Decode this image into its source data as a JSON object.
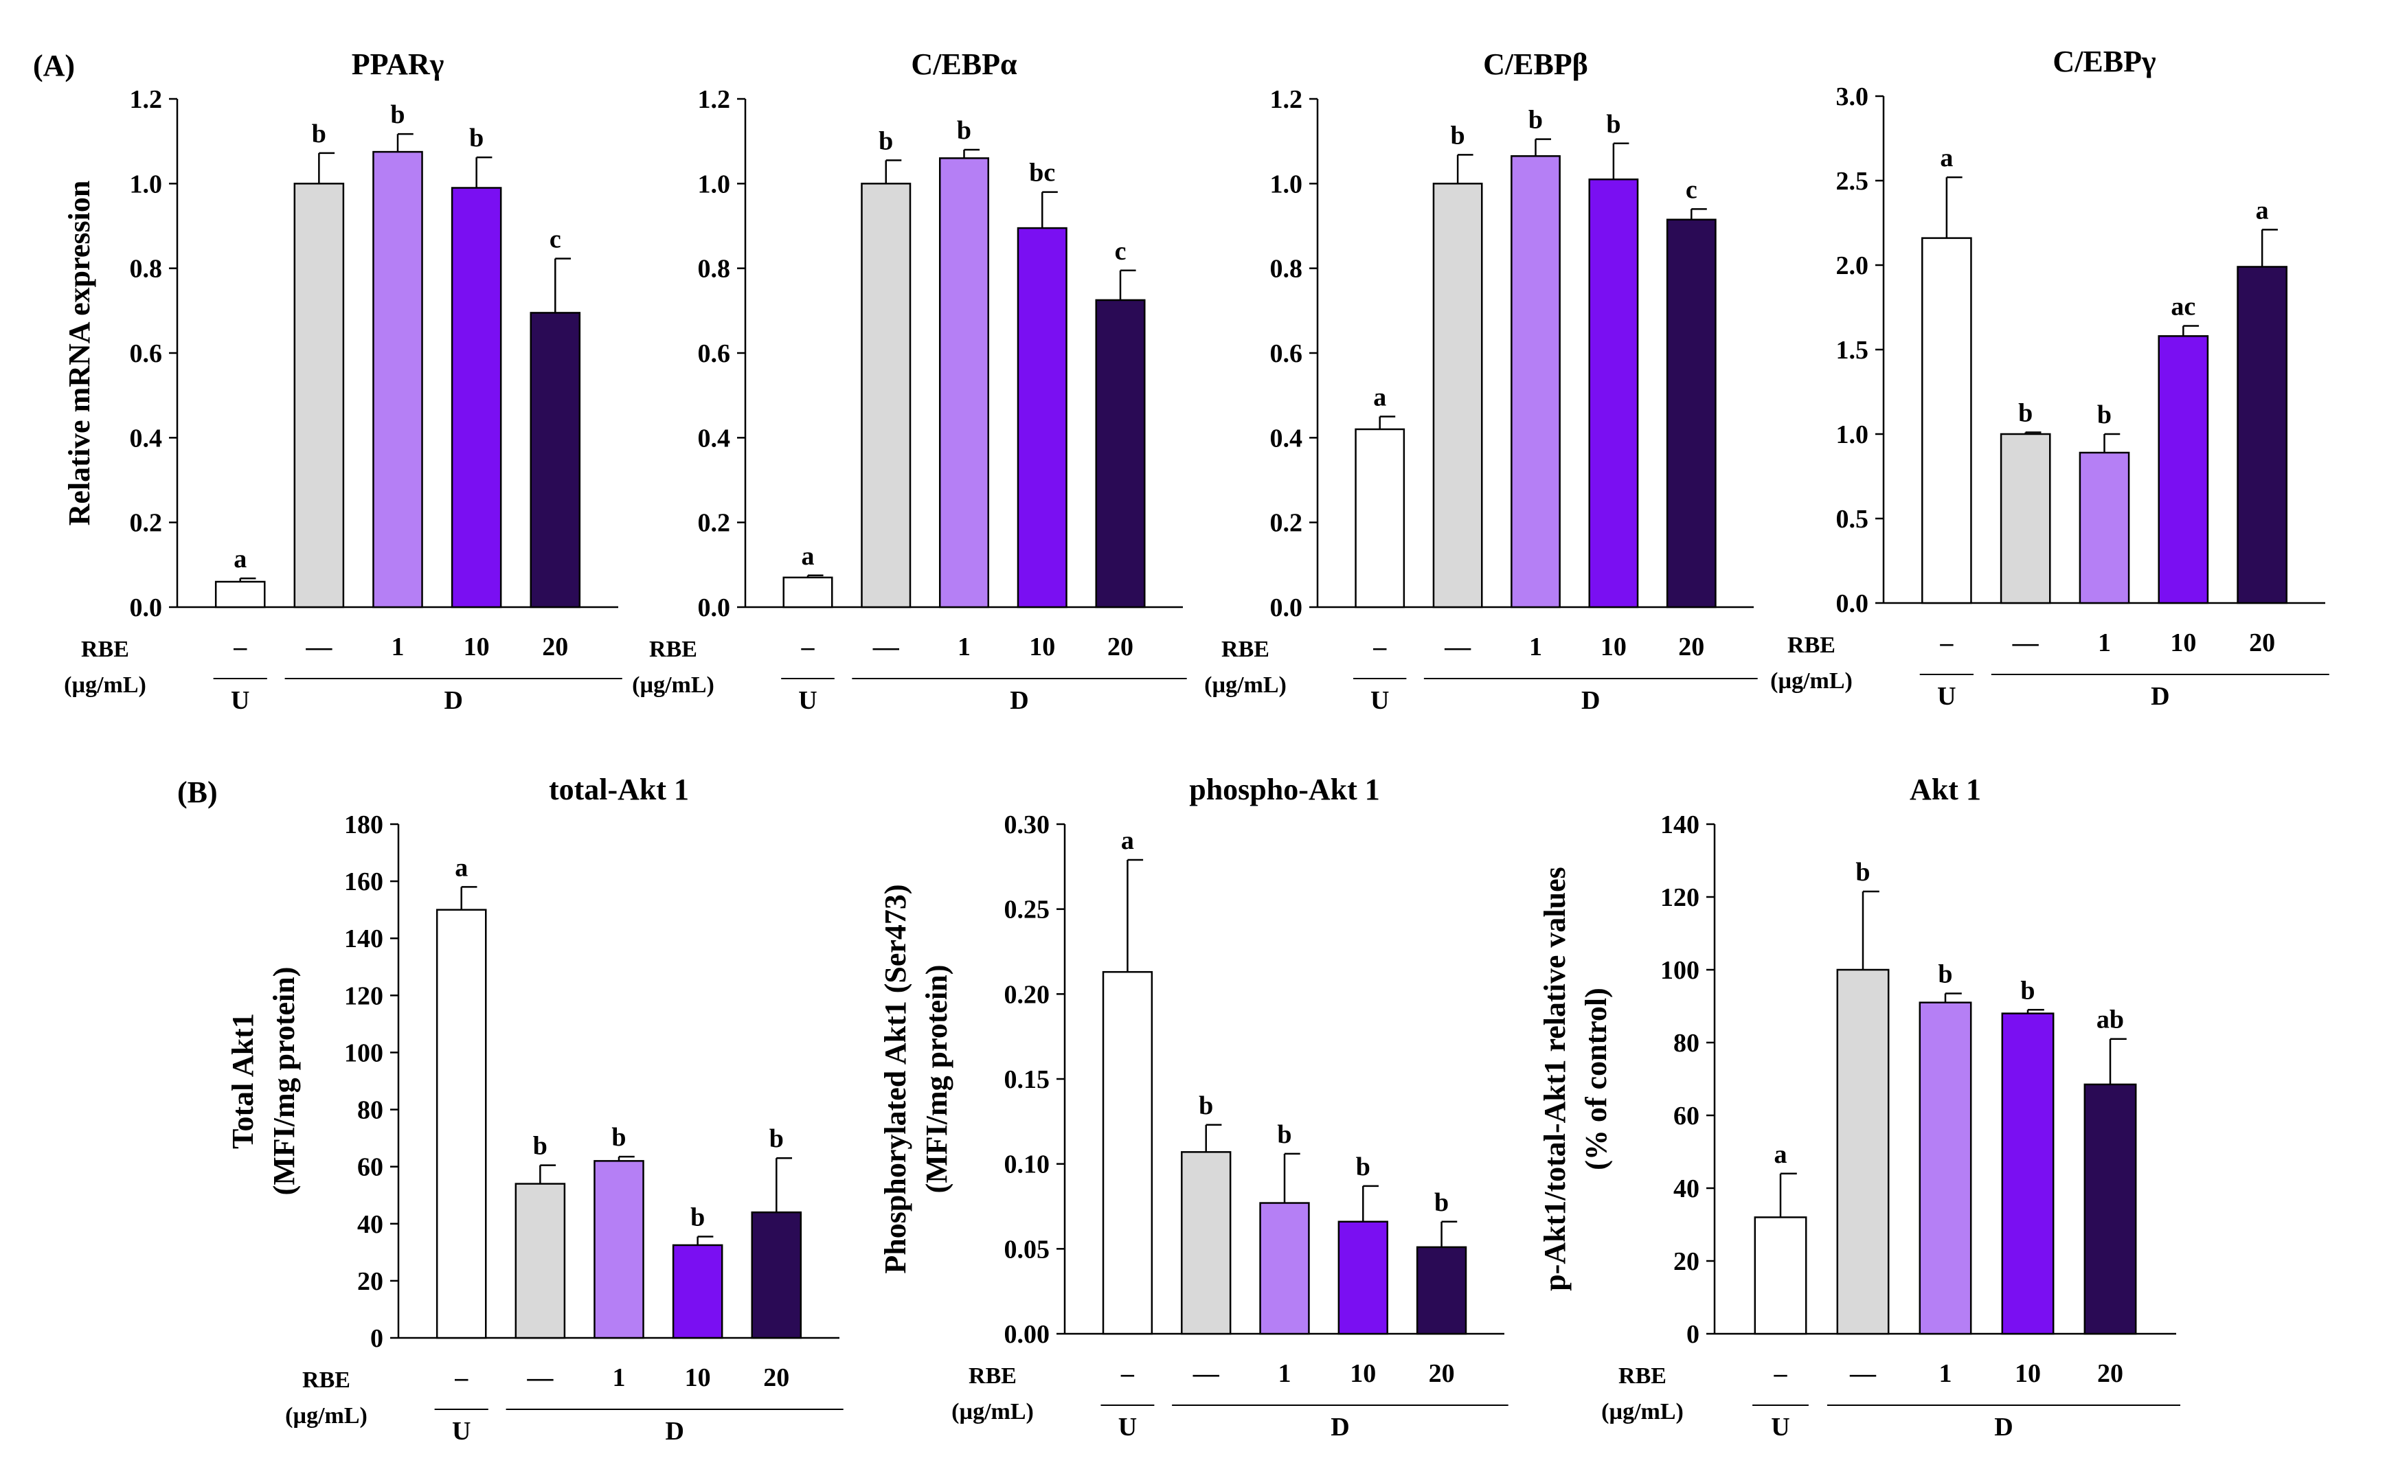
{
  "figure": {
    "panel_a_label": "(A)",
    "panel_b_label": "(B)",
    "colors": [
      "#ffffff",
      "#d9d9d9",
      "#b57ff5",
      "#7a0ff2",
      "#2a0a55"
    ],
    "rbe_label": "RBE",
    "rbe_unit": "(µg/mL)",
    "x_categories": [
      "–",
      "—",
      "1",
      "10",
      "20"
    ],
    "group_u": "U",
    "group_d": "D"
  },
  "chart_data": [
    {
      "id": "ppar",
      "type": "bar",
      "title": "PPARγ",
      "ylabel": "Relative mRNA expression",
      "ylabel2": "",
      "ylim": [
        0,
        1.2
      ],
      "yticks": [
        "0.0",
        "0.2",
        "0.4",
        "0.6",
        "0.8",
        "1.0",
        "1.2"
      ],
      "categories": [
        "–",
        "—",
        "1",
        "10",
        "20"
      ],
      "values": [
        0.06,
        1.0,
        1.075,
        0.99,
        0.695
      ],
      "errors": [
        0.008,
        0.072,
        0.042,
        0.072,
        0.128
      ],
      "sig": [
        "a",
        "b",
        "b",
        "b",
        "c"
      ]
    },
    {
      "id": "cebpa",
      "type": "bar",
      "title": "C/EBPα",
      "ylabel": "",
      "ylabel2": "",
      "ylim": [
        0,
        1.2
      ],
      "yticks": [
        "0.0",
        "0.2",
        "0.4",
        "0.6",
        "0.8",
        "1.0",
        "1.2"
      ],
      "categories": [
        "–",
        "—",
        "1",
        "10",
        "20"
      ],
      "values": [
        0.07,
        1.0,
        1.06,
        0.895,
        0.725
      ],
      "errors": [
        0.005,
        0.055,
        0.02,
        0.085,
        0.07
      ],
      "sig": [
        "a",
        "b",
        "b",
        "bc",
        "c"
      ]
    },
    {
      "id": "cebpb",
      "type": "bar",
      "title": "C/EBPβ",
      "ylabel": "",
      "ylabel2": "",
      "ylim": [
        0,
        1.2
      ],
      "yticks": [
        "0.0",
        "0.2",
        "0.4",
        "0.6",
        "0.8",
        "1.0",
        "1.2"
      ],
      "categories": [
        "–",
        "—",
        "1",
        "10",
        "20"
      ],
      "values": [
        0.42,
        1.0,
        1.065,
        1.01,
        0.915
      ],
      "errors": [
        0.03,
        0.068,
        0.04,
        0.085,
        0.025
      ],
      "sig": [
        "a",
        "b",
        "b",
        "b",
        "c"
      ]
    },
    {
      "id": "cebpg",
      "type": "bar",
      "title": "C/EBPγ",
      "ylabel": "",
      "ylabel2": "",
      "ylim": [
        0,
        3.0
      ],
      "yticks": [
        "0.0",
        "0.5",
        "1.0",
        "1.5",
        "2.0",
        "2.5",
        "3.0"
      ],
      "categories": [
        "–",
        "—",
        "1",
        "10",
        "20"
      ],
      "values": [
        2.16,
        1.0,
        0.89,
        1.58,
        1.99
      ],
      "errors": [
        0.36,
        0.01,
        0.11,
        0.06,
        0.22
      ],
      "sig": [
        "a",
        "b",
        "b",
        "ac",
        "a"
      ]
    },
    {
      "id": "totalakt",
      "type": "bar",
      "title": "total-Akt 1",
      "ylabel": "Total Akt1",
      "ylabel2": "(MFI/mg protein)",
      "ylim": [
        0,
        180
      ],
      "yticks": [
        "0",
        "20",
        "40",
        "60",
        "80",
        "100",
        "120",
        "140",
        "160",
        "180"
      ],
      "categories": [
        "–",
        "—",
        "1",
        "10",
        "20"
      ],
      "values": [
        150,
        54,
        62,
        32.5,
        44
      ],
      "errors": [
        8,
        6.5,
        1.5,
        3,
        19
      ],
      "sig": [
        "a",
        "b",
        "b",
        "b",
        "b"
      ]
    },
    {
      "id": "phosakt",
      "type": "bar",
      "title": "phospho-Akt 1",
      "ylabel": "Phosphorylated Akt1 (Ser473)",
      "ylabel2": "(MFI/mg protein)",
      "ylim": [
        0,
        0.3
      ],
      "yticks": [
        "0.00",
        "0.05",
        "0.10",
        "0.15",
        "0.20",
        "0.25",
        "0.30"
      ],
      "categories": [
        "–",
        "—",
        "1",
        "10",
        "20"
      ],
      "values": [
        0.213,
        0.107,
        0.077,
        0.066,
        0.051
      ],
      "errors": [
        0.066,
        0.016,
        0.029,
        0.021,
        0.015
      ],
      "sig": [
        "a",
        "b",
        "b",
        "b",
        "b"
      ]
    },
    {
      "id": "akt1",
      "type": "bar",
      "title": "Akt 1",
      "ylabel": "p-Akt1/total-Akt1 relative values",
      "ylabel2": "(% of control)",
      "ylim": [
        0,
        140
      ],
      "yticks": [
        "0",
        "20",
        "40",
        "60",
        "80",
        "100",
        "120",
        "140"
      ],
      "categories": [
        "–",
        "—",
        "1",
        "10",
        "20"
      ],
      "values": [
        32,
        100,
        91,
        88,
        68.5
      ],
      "errors": [
        12,
        21.5,
        2.5,
        1,
        12.5
      ],
      "sig": [
        "a",
        "b",
        "b",
        "b",
        "ab"
      ]
    }
  ]
}
